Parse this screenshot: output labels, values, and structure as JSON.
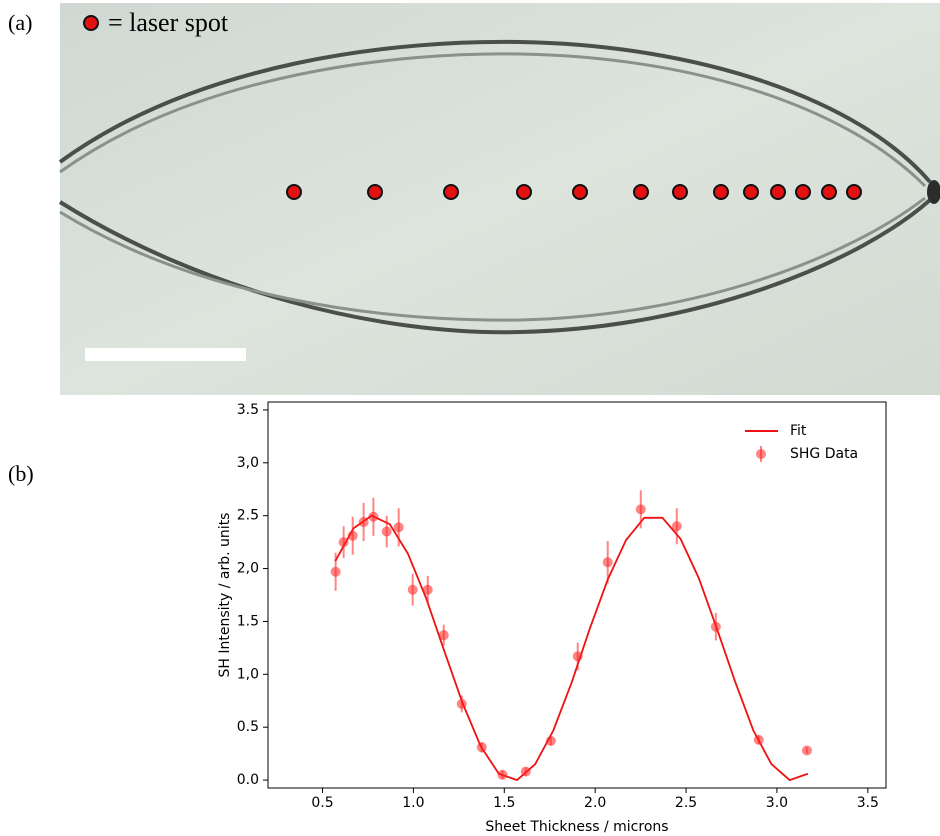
{
  "panel_a": {
    "label": "(a)",
    "legend_text": "= laser spot"
  },
  "panel_b": {
    "label": "(b)"
  },
  "chart_data": {
    "type": "line",
    "xlabel": "Sheet Thickness / microns",
    "ylabel": "SH Intensity / arb. units",
    "xlim": [
      0.2,
      3.6
    ],
    "ylim": [
      -0.075,
      3.575
    ],
    "xticks": [
      0.5,
      {
        "value": 1.0,
        "label": "1.0"
      },
      1.5,
      {
        "value": 2.0,
        "label": "2.0"
      },
      2.5,
      {
        "value": 3.0,
        "label": "3.0"
      },
      3.5
    ],
    "yticks": [
      {
        "value": 0,
        "label": "0.0"
      },
      0.5,
      {
        "value": 1,
        "label": "1,0"
      },
      1.5,
      {
        "value": 2,
        "label": "2,0"
      },
      2.5,
      {
        "value": 3,
        "label": "3,0"
      },
      3.5
    ],
    "grid": false,
    "legend": "upper right",
    "series": [
      {
        "name": "Fit",
        "type": "line",
        "color": "#ee1111",
        "x": [
          0.57,
          0.67,
          0.77,
          0.87,
          0.97,
          1.07,
          1.17,
          1.27,
          1.37,
          1.47,
          1.57,
          1.67,
          1.77,
          1.87,
          1.97,
          2.07,
          2.17,
          2.27,
          2.37,
          2.47,
          2.57,
          2.67,
          2.77,
          2.87,
          2.97,
          3.07,
          3.17
        ],
        "values": [
          2.07,
          2.38,
          2.5,
          2.42,
          2.14,
          1.72,
          1.22,
          0.73,
          0.32,
          0.06,
          0.0,
          0.15,
          0.47,
          0.92,
          1.43,
          1.9,
          2.27,
          2.48,
          2.48,
          2.28,
          1.91,
          1.43,
          0.93,
          0.47,
          0.15,
          0.0,
          0.06
        ]
      },
      {
        "name": "SHG Data",
        "type": "errorbar",
        "color": "#ff2020",
        "alpha": 0.55,
        "x": [
          0.572,
          0.616,
          0.666,
          0.726,
          0.78,
          0.853,
          0.919,
          0.996,
          1.079,
          1.167,
          1.266,
          1.376,
          1.49,
          1.618,
          1.756,
          1.904,
          2.069,
          2.251,
          2.449,
          2.664,
          2.9,
          3.165
        ],
        "values": [
          1.97,
          2.25,
          2.31,
          2.44,
          2.49,
          2.35,
          2.39,
          1.8,
          1.8,
          1.37,
          0.72,
          0.31,
          0.05,
          0.08,
          0.37,
          1.17,
          2.06,
          2.56,
          2.4,
          1.45,
          0.38,
          0.28
        ],
        "errors": [
          0.18,
          0.15,
          0.18,
          0.18,
          0.18,
          0.15,
          0.18,
          0.15,
          0.13,
          0.1,
          0.08,
          0.05,
          0.04,
          0.04,
          0.04,
          0.13,
          0.2,
          0.18,
          0.17,
          0.13,
          0.04,
          0.03
        ]
      }
    ]
  }
}
